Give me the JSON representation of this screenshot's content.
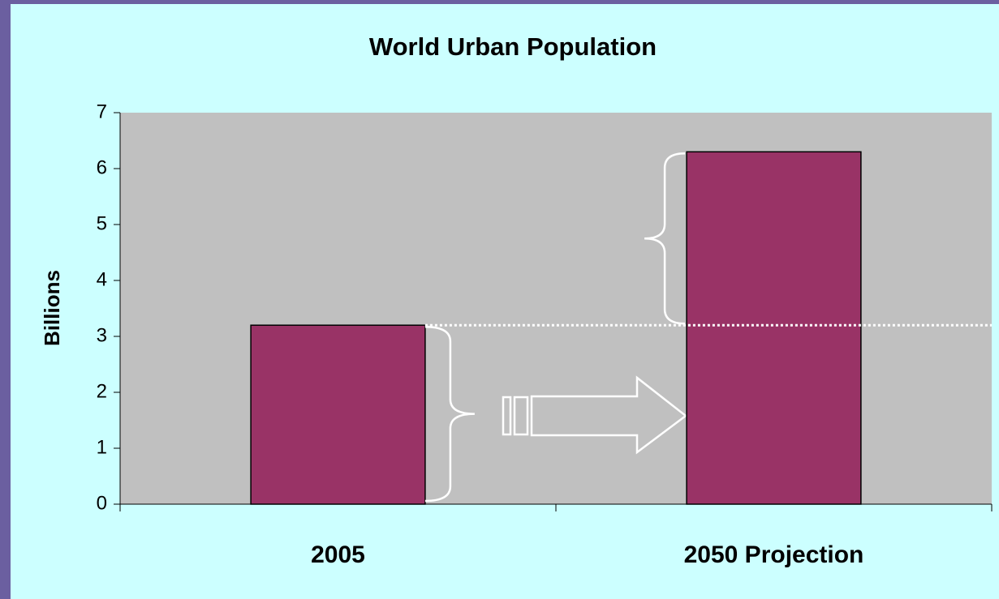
{
  "chart_data": {
    "type": "bar",
    "title": "World Urban Population",
    "categories": [
      "2005",
      "2050 Projection"
    ],
    "values": [
      3.2,
      6.3
    ],
    "color": "#993366",
    "ylabel": "Billions",
    "ylim": [
      0,
      7
    ],
    "yticks": [
      0,
      1,
      2,
      3,
      4,
      5,
      6,
      7
    ],
    "grid": false
  }
}
